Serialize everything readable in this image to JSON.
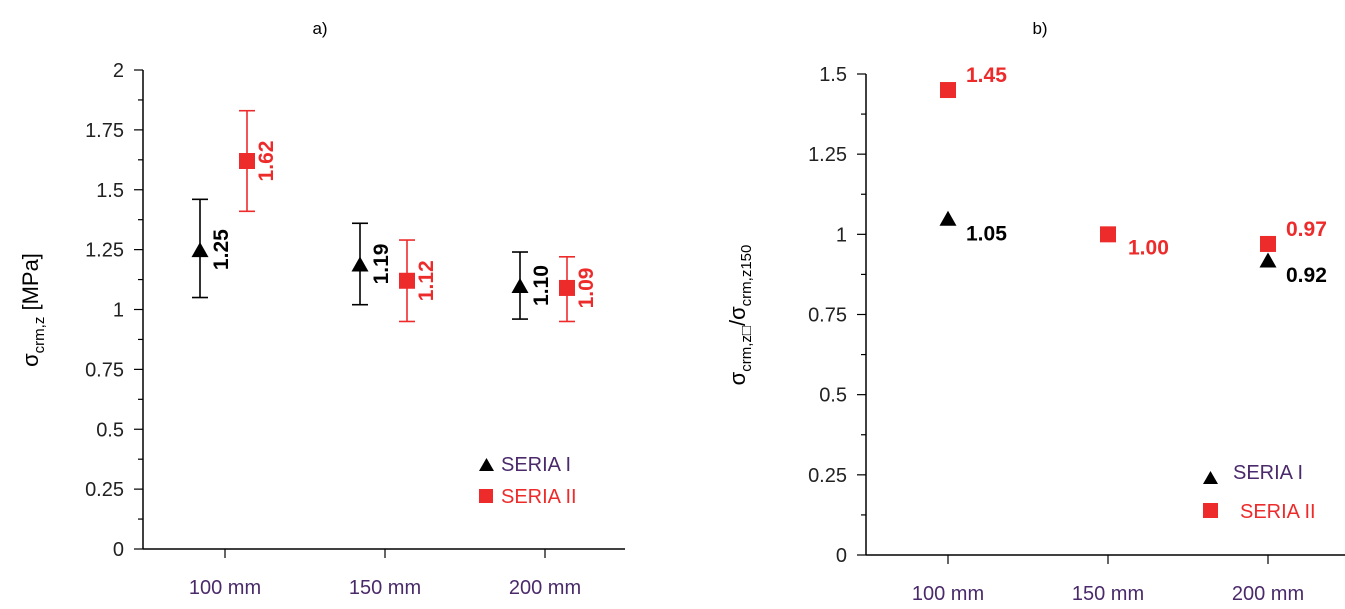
{
  "chart_data": [
    {
      "type": "scatter",
      "title": "a)",
      "ylabel_main": "σ",
      "ylabel_sub": "crm,z",
      "ylabel_unit": " [MPa]",
      "ylim": [
        0,
        2
      ],
      "yticks": [
        "0",
        "0.25",
        "0.5",
        "0.75",
        "1",
        "1.25",
        "1.5",
        "1.75",
        "2"
      ],
      "categories": [
        "100 mm",
        "150 mm",
        "200 mm"
      ],
      "grid": false,
      "legend_position": "bottom-right",
      "series": [
        {
          "name": "SERIA I",
          "marker": "triangle",
          "color": "#000000",
          "values": [
            1.25,
            1.19,
            1.1
          ],
          "error_low": [
            1.05,
            1.02,
            0.96
          ],
          "error_high": [
            1.46,
            1.36,
            1.24
          ],
          "labels": [
            "1.25",
            "1.19",
            "1.10"
          ]
        },
        {
          "name": "SERIA II",
          "marker": "square",
          "color": "#ee2b2b",
          "values": [
            1.62,
            1.12,
            1.09
          ],
          "error_low": [
            1.41,
            0.95,
            0.95
          ],
          "error_high": [
            1.83,
            1.29,
            1.22
          ],
          "labels": [
            "1.62",
            "1.12",
            "1.09"
          ]
        }
      ]
    },
    {
      "type": "scatter",
      "title": "b)",
      "ylabel_num": "σ",
      "ylabel_num_sub": "crm,z□",
      "ylabel_den": "/σ",
      "ylabel_den_sub": "crm,z150",
      "ylim": [
        0,
        1.5
      ],
      "yticks": [
        "0",
        "0.25",
        "0.5",
        "0.75",
        "1",
        "1.25",
        "1.5"
      ],
      "categories": [
        "100 mm",
        "150 mm",
        "200 mm"
      ],
      "grid": false,
      "legend_position": "bottom-right",
      "series": [
        {
          "name": "SERIA I",
          "marker": "triangle",
          "color": "#000000",
          "values": [
            1.05,
            null,
            0.92
          ],
          "labels": [
            "1.05",
            "",
            "0.92"
          ]
        },
        {
          "name": "SERIA II",
          "marker": "square",
          "color": "#ee2b2b",
          "values": [
            1.45,
            1.0,
            0.97
          ],
          "labels": [
            "1.45",
            "1.00",
            "0.97"
          ]
        }
      ]
    }
  ]
}
